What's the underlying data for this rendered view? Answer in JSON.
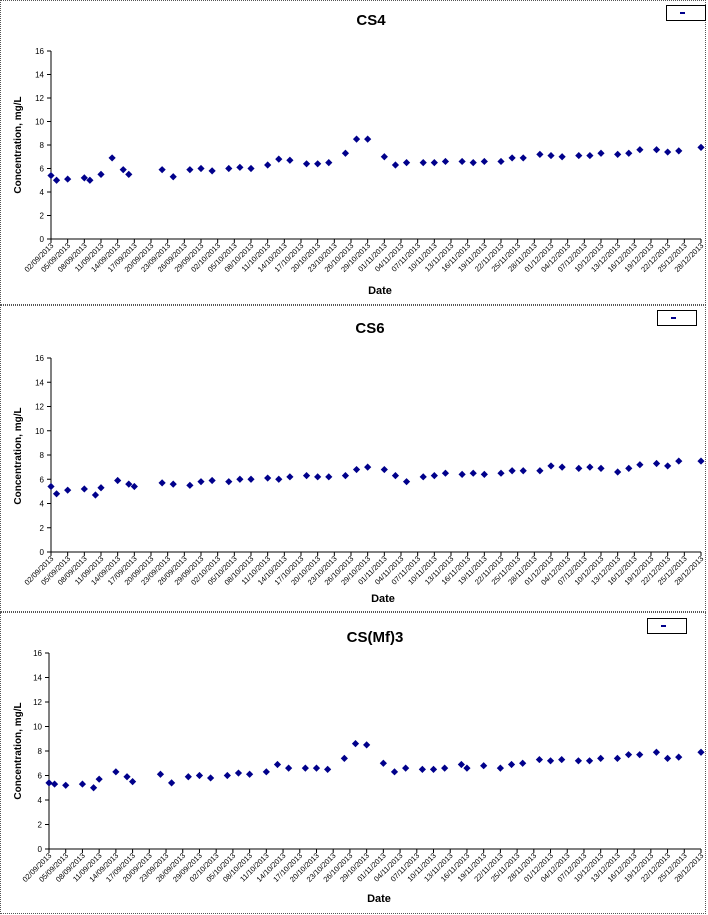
{
  "chart_data": [
    {
      "type": "scatter",
      "title": "CS4",
      "xlabel": "Date",
      "ylabel": "Concentration, mg/L",
      "ylim": [
        0,
        16
      ],
      "yticks": [
        0,
        2,
        4,
        6,
        8,
        10,
        12,
        14,
        16
      ],
      "xlim": [
        "02/09/2013",
        "28/12/2013"
      ],
      "x_tick_labels": [
        "02/09/2013",
        "05/09/2013",
        "08/09/2013",
        "11/09/2013",
        "14/09/2013",
        "17/09/2013",
        "20/09/2013",
        "23/09/2013",
        "26/09/2013",
        "29/09/2013",
        "02/10/2013",
        "05/10/2013",
        "08/10/2013",
        "11/10/2013",
        "14/10/2013",
        "17/10/2013",
        "20/10/2013",
        "23/10/2013",
        "26/10/2013",
        "29/10/2013",
        "01/11/2013",
        "04/11/2013",
        "07/11/2013",
        "10/11/2013",
        "13/11/2013",
        "16/11/2013",
        "19/11/2013",
        "22/11/2013",
        "25/11/2013",
        "28/11/2013",
        "01/12/2013",
        "04/12/2013",
        "07/12/2013",
        "10/12/2013",
        "13/12/2013",
        "16/12/2013",
        "19/12/2013",
        "22/12/2013",
        "25/12/2013",
        "28/12/2013"
      ],
      "grid": false,
      "legend_position": "top-right",
      "marker_color": "#00008b",
      "points": [
        [
          "02/09/2013",
          5.4
        ],
        [
          "03/09/2013",
          5.0
        ],
        [
          "05/09/2013",
          5.1
        ],
        [
          "08/09/2013",
          5.2
        ],
        [
          "09/09/2013",
          5.0
        ],
        [
          "11/09/2013",
          5.5
        ],
        [
          "13/09/2013",
          6.9
        ],
        [
          "15/09/2013",
          5.9
        ],
        [
          "16/09/2013",
          5.5
        ],
        [
          "22/09/2013",
          5.9
        ],
        [
          "24/09/2013",
          5.3
        ],
        [
          "27/09/2013",
          5.9
        ],
        [
          "29/09/2013",
          6.0
        ],
        [
          "01/10/2013",
          5.8
        ],
        [
          "04/10/2013",
          6.0
        ],
        [
          "06/10/2013",
          6.1
        ],
        [
          "08/10/2013",
          6.0
        ],
        [
          "11/10/2013",
          6.3
        ],
        [
          "13/10/2013",
          6.8
        ],
        [
          "15/10/2013",
          6.7
        ],
        [
          "18/10/2013",
          6.4
        ],
        [
          "20/10/2013",
          6.4
        ],
        [
          "22/10/2013",
          6.5
        ],
        [
          "25/10/2013",
          7.3
        ],
        [
          "27/10/2013",
          8.5
        ],
        [
          "29/10/2013",
          8.5
        ],
        [
          "01/11/2013",
          7.0
        ],
        [
          "03/11/2013",
          6.3
        ],
        [
          "05/11/2013",
          6.5
        ],
        [
          "08/11/2013",
          6.5
        ],
        [
          "10/11/2013",
          6.5
        ],
        [
          "12/11/2013",
          6.6
        ],
        [
          "15/11/2013",
          6.6
        ],
        [
          "17/11/2013",
          6.5
        ],
        [
          "19/11/2013",
          6.6
        ],
        [
          "22/11/2013",
          6.6
        ],
        [
          "24/11/2013",
          6.9
        ],
        [
          "26/11/2013",
          6.9
        ],
        [
          "29/11/2013",
          7.2
        ],
        [
          "01/12/2013",
          7.1
        ],
        [
          "03/12/2013",
          7.0
        ],
        [
          "06/12/2013",
          7.1
        ],
        [
          "08/12/2013",
          7.1
        ],
        [
          "10/12/2013",
          7.3
        ],
        [
          "13/12/2013",
          7.2
        ],
        [
          "15/12/2013",
          7.3
        ],
        [
          "17/12/2013",
          7.6
        ],
        [
          "20/12/2013",
          7.6
        ],
        [
          "22/12/2013",
          7.4
        ],
        [
          "24/12/2013",
          7.5
        ],
        [
          "28/12/2013",
          7.8
        ]
      ]
    },
    {
      "type": "scatter",
      "title": "CS6",
      "xlabel": "Date",
      "ylabel": "Concentration, mg/L",
      "ylim": [
        0,
        16
      ],
      "yticks": [
        0,
        2,
        4,
        6,
        8,
        10,
        12,
        14,
        16
      ],
      "xlim": [
        "02/09/2013",
        "28/12/2013"
      ],
      "x_tick_labels": [
        "02/09/2013",
        "05/09/2013",
        "08/09/2013",
        "11/09/2013",
        "14/09/2013",
        "17/09/2013",
        "20/09/2013",
        "23/09/2013",
        "26/09/2013",
        "29/09/2013",
        "02/10/2013",
        "05/10/2013",
        "08/10/2013",
        "11/10/2013",
        "14/10/2013",
        "17/10/2013",
        "20/10/2013",
        "23/10/2013",
        "26/10/2013",
        "29/10/2013",
        "01/11/2013",
        "04/11/2013",
        "07/11/2013",
        "10/11/2013",
        "13/11/2013",
        "16/11/2013",
        "19/11/2013",
        "22/11/2013",
        "25/11/2013",
        "28/11/2013",
        "01/12/2013",
        "04/12/2013",
        "07/12/2013",
        "10/12/2013",
        "13/12/2013",
        "16/12/2013",
        "19/12/2013",
        "22/12/2013",
        "25/12/2013",
        "28/12/2013"
      ],
      "grid": false,
      "legend_position": "top-right",
      "marker_color": "#00008b",
      "points": [
        [
          "02/09/2013",
          5.4
        ],
        [
          "03/09/2013",
          4.8
        ],
        [
          "05/09/2013",
          5.1
        ],
        [
          "08/09/2013",
          5.2
        ],
        [
          "10/09/2013",
          4.7
        ],
        [
          "11/09/2013",
          5.3
        ],
        [
          "14/09/2013",
          5.9
        ],
        [
          "16/09/2013",
          5.6
        ],
        [
          "17/09/2013",
          5.4
        ],
        [
          "22/09/2013",
          5.7
        ],
        [
          "24/09/2013",
          5.6
        ],
        [
          "27/09/2013",
          5.5
        ],
        [
          "29/09/2013",
          5.8
        ],
        [
          "01/10/2013",
          5.9
        ],
        [
          "04/10/2013",
          5.8
        ],
        [
          "06/10/2013",
          6.0
        ],
        [
          "08/10/2013",
          6.0
        ],
        [
          "11/10/2013",
          6.1
        ],
        [
          "13/10/2013",
          6.0
        ],
        [
          "15/10/2013",
          6.2
        ],
        [
          "18/10/2013",
          6.3
        ],
        [
          "20/10/2013",
          6.2
        ],
        [
          "22/10/2013",
          6.2
        ],
        [
          "25/10/2013",
          6.3
        ],
        [
          "27/10/2013",
          6.8
        ],
        [
          "29/10/2013",
          7.0
        ],
        [
          "01/11/2013",
          6.8
        ],
        [
          "03/11/2013",
          6.3
        ],
        [
          "05/11/2013",
          5.8
        ],
        [
          "08/11/2013",
          6.2
        ],
        [
          "10/11/2013",
          6.3
        ],
        [
          "12/11/2013",
          6.5
        ],
        [
          "15/11/2013",
          6.4
        ],
        [
          "17/11/2013",
          6.5
        ],
        [
          "19/11/2013",
          6.4
        ],
        [
          "22/11/2013",
          6.5
        ],
        [
          "24/11/2013",
          6.7
        ],
        [
          "26/11/2013",
          6.7
        ],
        [
          "29/11/2013",
          6.7
        ],
        [
          "01/12/2013",
          7.1
        ],
        [
          "03/12/2013",
          7.0
        ],
        [
          "06/12/2013",
          6.9
        ],
        [
          "08/12/2013",
          7.0
        ],
        [
          "10/12/2013",
          6.9
        ],
        [
          "13/12/2013",
          6.6
        ],
        [
          "15/12/2013",
          6.9
        ],
        [
          "17/12/2013",
          7.2
        ],
        [
          "20/12/2013",
          7.3
        ],
        [
          "22/12/2013",
          7.1
        ],
        [
          "24/12/2013",
          7.5
        ],
        [
          "28/12/2013",
          7.5
        ]
      ]
    },
    {
      "type": "scatter",
      "title": "CS(Mf)3",
      "xlabel": "Date",
      "ylabel": "Concentration, mg/L",
      "ylim": [
        0,
        16
      ],
      "yticks": [
        0,
        2,
        4,
        6,
        8,
        10,
        12,
        14,
        16
      ],
      "xlim": [
        "02/09/2013",
        "28/12/2013"
      ],
      "x_tick_labels": [
        "02/09/2013",
        "05/09/2013",
        "08/09/2013",
        "11/09/2013",
        "14/09/2013",
        "17/09/2013",
        "20/09/2013",
        "23/09/2013",
        "26/09/2013",
        "29/09/2013",
        "02/10/2013",
        "05/10/2013",
        "08/10/2013",
        "11/10/2013",
        "14/10/2013",
        "17/10/2013",
        "20/10/2013",
        "23/10/2013",
        "26/10/2013",
        "29/10/2013",
        "01/11/2013",
        "04/11/2013",
        "07/11/2013",
        "10/11/2013",
        "13/11/2013",
        "16/11/2013",
        "19/11/2013",
        "22/11/2013",
        "25/11/2013",
        "28/11/2013",
        "01/12/2013",
        "04/12/2013",
        "07/12/2013",
        "10/12/2013",
        "13/12/2013",
        "16/12/2013",
        "19/12/2013",
        "22/12/2013",
        "25/12/2013",
        "28/12/2013"
      ],
      "grid": false,
      "legend_position": "top-right",
      "marker_color": "#00008b",
      "points": [
        [
          "02/09/2013",
          5.4
        ],
        [
          "03/09/2013",
          5.3
        ],
        [
          "05/09/2013",
          5.2
        ],
        [
          "08/09/2013",
          5.3
        ],
        [
          "10/09/2013",
          5.0
        ],
        [
          "11/09/2013",
          5.7
        ],
        [
          "14/09/2013",
          6.3
        ],
        [
          "16/09/2013",
          5.9
        ],
        [
          "17/09/2013",
          5.5
        ],
        [
          "22/09/2013",
          6.1
        ],
        [
          "24/09/2013",
          5.4
        ],
        [
          "27/09/2013",
          5.9
        ],
        [
          "29/09/2013",
          6.0
        ],
        [
          "01/10/2013",
          5.8
        ],
        [
          "04/10/2013",
          6.0
        ],
        [
          "06/10/2013",
          6.2
        ],
        [
          "08/10/2013",
          6.1
        ],
        [
          "11/10/2013",
          6.3
        ],
        [
          "13/10/2013",
          6.9
        ],
        [
          "15/10/2013",
          6.6
        ],
        [
          "18/10/2013",
          6.6
        ],
        [
          "20/10/2013",
          6.6
        ],
        [
          "22/10/2013",
          6.5
        ],
        [
          "25/10/2013",
          7.4
        ],
        [
          "27/10/2013",
          8.6
        ],
        [
          "29/10/2013",
          8.5
        ],
        [
          "01/11/2013",
          7.0
        ],
        [
          "03/11/2013",
          6.3
        ],
        [
          "05/11/2013",
          6.6
        ],
        [
          "08/11/2013",
          6.5
        ],
        [
          "10/11/2013",
          6.5
        ],
        [
          "12/11/2013",
          6.6
        ],
        [
          "15/11/2013",
          6.9
        ],
        [
          "16/11/2013",
          6.6
        ],
        [
          "19/11/2013",
          6.8
        ],
        [
          "22/11/2013",
          6.6
        ],
        [
          "24/11/2013",
          6.9
        ],
        [
          "26/11/2013",
          7.0
        ],
        [
          "29/11/2013",
          7.3
        ],
        [
          "01/12/2013",
          7.2
        ],
        [
          "03/12/2013",
          7.3
        ],
        [
          "06/12/2013",
          7.2
        ],
        [
          "08/12/2013",
          7.2
        ],
        [
          "10/12/2013",
          7.4
        ],
        [
          "13/12/2013",
          7.4
        ],
        [
          "15/12/2013",
          7.7
        ],
        [
          "17/12/2013",
          7.7
        ],
        [
          "20/12/2013",
          7.9
        ],
        [
          "22/12/2013",
          7.4
        ],
        [
          "24/12/2013",
          7.5
        ],
        [
          "28/12/2013",
          7.9
        ]
      ]
    }
  ]
}
